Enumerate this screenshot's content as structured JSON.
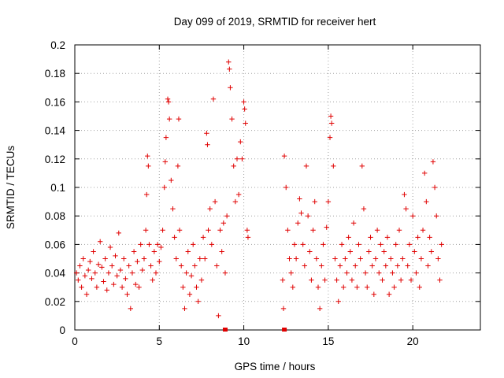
{
  "chart_data": {
    "type": "scatter",
    "title": "Day 099 of 2019, SRMTID for receiver hert",
    "xlabel": "GPS time / hours",
    "ylabel": "SRMTID / TECUs",
    "xlim": [
      0,
      24
    ],
    "ylim": [
      0,
      0.2
    ],
    "x_ticks": [
      0,
      5,
      10,
      15,
      20
    ],
    "x_tick_labels": [
      "0",
      "5",
      "10",
      "15",
      "20"
    ],
    "y_ticks": [
      0,
      0.02,
      0.04,
      0.06,
      0.08,
      0.1,
      0.12,
      0.14,
      0.16,
      0.18,
      0.2
    ],
    "y_tick_labels": [
      "0",
      "0.02",
      "0.04",
      "0.06",
      "0.08",
      "0.1",
      "0.12",
      "0.14",
      "0.16",
      "0.18",
      "0.2"
    ],
    "grid": true,
    "marker": "+",
    "color": "#e00000",
    "series": [
      {
        "points": [
          [
            0.1,
            0.04
          ],
          [
            0.2,
            0.035
          ],
          [
            0.3,
            0.045
          ],
          [
            0.4,
            0.03
          ],
          [
            0.5,
            0.05
          ],
          [
            0.6,
            0.038
          ],
          [
            0.7,
            0.025
          ],
          [
            0.8,
            0.042
          ],
          [
            0.9,
            0.048
          ],
          [
            1.0,
            0.036
          ],
          [
            1.1,
            0.055
          ],
          [
            1.2,
            0.04
          ],
          [
            1.3,
            0.03
          ],
          [
            1.4,
            0.046
          ],
          [
            1.5,
            0.062
          ],
          [
            1.6,
            0.044
          ],
          [
            1.7,
            0.034
          ],
          [
            1.8,
            0.05
          ],
          [
            1.9,
            0.028
          ],
          [
            2.0,
            0.04
          ],
          [
            2.1,
            0.058
          ],
          [
            2.2,
            0.045
          ],
          [
            2.3,
            0.032
          ],
          [
            2.4,
            0.052
          ],
          [
            2.5,
            0.038
          ],
          [
            2.6,
            0.068
          ],
          [
            2.7,
            0.042
          ],
          [
            2.8,
            0.03
          ],
          [
            2.9,
            0.05
          ],
          [
            3.0,
            0.036
          ],
          [
            3.1,
            0.025
          ],
          [
            3.2,
            0.045
          ],
          [
            3.3,
            0.015
          ],
          [
            3.4,
            0.04
          ],
          [
            3.5,
            0.055
          ],
          [
            3.6,
            0.032
          ],
          [
            3.7,
            0.048
          ],
          [
            3.8,
            0.03
          ],
          [
            3.9,
            0.06
          ],
          [
            4.0,
            0.042
          ],
          [
            4.1,
            0.05
          ],
          [
            4.2,
            0.07
          ],
          [
            4.25,
            0.095
          ],
          [
            4.3,
            0.122
          ],
          [
            4.35,
            0.115
          ],
          [
            4.4,
            0.06
          ],
          [
            4.5,
            0.045
          ],
          [
            4.6,
            0.035
          ],
          [
            4.7,
            0.055
          ],
          [
            4.8,
            0.04
          ],
          [
            4.9,
            0.06
          ],
          [
            5.0,
            0.048
          ],
          [
            5.1,
            0.058
          ],
          [
            5.2,
            0.07
          ],
          [
            5.3,
            0.1
          ],
          [
            5.35,
            0.118
          ],
          [
            5.4,
            0.135
          ],
          [
            5.5,
            0.162
          ],
          [
            5.55,
            0.16
          ],
          [
            5.6,
            0.148
          ],
          [
            5.7,
            0.105
          ],
          [
            5.8,
            0.085
          ],
          [
            5.9,
            0.065
          ],
          [
            6.0,
            0.05
          ],
          [
            6.1,
            0.115
          ],
          [
            6.15,
            0.148
          ],
          [
            6.2,
            0.07
          ],
          [
            6.3,
            0.045
          ],
          [
            6.4,
            0.03
          ],
          [
            6.5,
            0.015
          ],
          [
            6.6,
            0.04
          ],
          [
            6.7,
            0.055
          ],
          [
            6.8,
            0.025
          ],
          [
            6.9,
            0.038
          ],
          [
            7.0,
            0.06
          ],
          [
            7.1,
            0.045
          ],
          [
            7.2,
            0.03
          ],
          [
            7.3,
            0.02
          ],
          [
            7.4,
            0.05
          ],
          [
            7.5,
            0.035
          ],
          [
            7.6,
            0.065
          ],
          [
            7.7,
            0.05
          ],
          [
            7.8,
            0.138
          ],
          [
            7.85,
            0.13
          ],
          [
            7.9,
            0.07
          ],
          [
            8.0,
            0.085
          ],
          [
            8.1,
            0.06
          ],
          [
            8.2,
            0.162
          ],
          [
            8.3,
            0.09
          ],
          [
            8.4,
            0.045
          ],
          [
            8.5,
            0.01
          ],
          [
            8.6,
            0.07
          ],
          [
            8.7,
            0.055
          ],
          [
            8.8,
            0.075
          ],
          [
            8.9,
            0.04
          ],
          [
            9.0,
            0.08
          ],
          [
            9.1,
            0.188
          ],
          [
            9.15,
            0.183
          ],
          [
            9.2,
            0.17
          ],
          [
            9.3,
            0.148
          ],
          [
            9.4,
            0.115
          ],
          [
            9.5,
            0.09
          ],
          [
            9.6,
            0.12
          ],
          [
            9.7,
            0.095
          ],
          [
            9.8,
            0.132
          ],
          [
            9.9,
            0.12
          ],
          [
            10.0,
            0.16
          ],
          [
            10.05,
            0.155
          ],
          [
            10.1,
            0.145
          ],
          [
            10.2,
            0.07
          ],
          [
            10.25,
            0.065
          ],
          [
            12.3,
            0.035
          ],
          [
            12.35,
            0.015
          ],
          [
            12.4,
            0.122
          ],
          [
            12.5,
            0.1
          ],
          [
            12.6,
            0.07
          ],
          [
            12.7,
            0.05
          ],
          [
            12.8,
            0.04
          ],
          [
            12.9,
            0.03
          ],
          [
            13.0,
            0.06
          ],
          [
            13.1,
            0.05
          ],
          [
            13.2,
            0.075
          ],
          [
            13.3,
            0.092
          ],
          [
            13.4,
            0.082
          ],
          [
            13.5,
            0.06
          ],
          [
            13.6,
            0.045
          ],
          [
            13.7,
            0.115
          ],
          [
            13.8,
            0.08
          ],
          [
            13.9,
            0.055
          ],
          [
            14.0,
            0.035
          ],
          [
            14.1,
            0.07
          ],
          [
            14.2,
            0.09
          ],
          [
            14.3,
            0.05
          ],
          [
            14.4,
            0.03
          ],
          [
            14.5,
            0.015
          ],
          [
            14.6,
            0.045
          ],
          [
            14.7,
            0.06
          ],
          [
            14.8,
            0.035
          ],
          [
            14.9,
            0.072
          ],
          [
            15.0,
            0.09
          ],
          [
            15.1,
            0.135
          ],
          [
            15.15,
            0.15
          ],
          [
            15.2,
            0.145
          ],
          [
            15.3,
            0.115
          ],
          [
            15.4,
            0.05
          ],
          [
            15.5,
            0.035
          ],
          [
            15.6,
            0.02
          ],
          [
            15.7,
            0.045
          ],
          [
            15.8,
            0.06
          ],
          [
            15.9,
            0.03
          ],
          [
            16.0,
            0.05
          ],
          [
            16.1,
            0.04
          ],
          [
            16.2,
            0.065
          ],
          [
            16.3,
            0.055
          ],
          [
            16.4,
            0.035
          ],
          [
            16.5,
            0.075
          ],
          [
            16.6,
            0.045
          ],
          [
            16.7,
            0.03
          ],
          [
            16.8,
            0.06
          ],
          [
            16.9,
            0.05
          ],
          [
            17.0,
            0.115
          ],
          [
            17.1,
            0.085
          ],
          [
            17.2,
            0.04
          ],
          [
            17.3,
            0.03
          ],
          [
            17.4,
            0.055
          ],
          [
            17.5,
            0.065
          ],
          [
            17.6,
            0.045
          ],
          [
            17.7,
            0.025
          ],
          [
            17.8,
            0.05
          ],
          [
            17.9,
            0.07
          ],
          [
            18.0,
            0.04
          ],
          [
            18.1,
            0.06
          ],
          [
            18.2,
            0.035
          ],
          [
            18.3,
            0.055
          ],
          [
            18.4,
            0.045
          ],
          [
            18.5,
            0.065
          ],
          [
            18.6,
            0.025
          ],
          [
            18.7,
            0.05
          ],
          [
            18.8,
            0.04
          ],
          [
            18.9,
            0.03
          ],
          [
            19.0,
            0.06
          ],
          [
            19.1,
            0.045
          ],
          [
            19.2,
            0.07
          ],
          [
            19.3,
            0.035
          ],
          [
            19.4,
            0.05
          ],
          [
            19.5,
            0.095
          ],
          [
            19.6,
            0.085
          ],
          [
            19.7,
            0.045
          ],
          [
            19.8,
            0.06
          ],
          [
            19.9,
            0.035
          ],
          [
            20.0,
            0.08
          ],
          [
            20.1,
            0.055
          ],
          [
            20.2,
            0.04
          ],
          [
            20.3,
            0.065
          ],
          [
            20.4,
            0.03
          ],
          [
            20.5,
            0.05
          ],
          [
            20.6,
            0.07
          ],
          [
            20.7,
            0.11
          ],
          [
            20.8,
            0.09
          ],
          [
            20.9,
            0.045
          ],
          [
            21.0,
            0.065
          ],
          [
            21.1,
            0.055
          ],
          [
            21.2,
            0.118
          ],
          [
            21.3,
            0.1
          ],
          [
            21.4,
            0.08
          ],
          [
            21.5,
            0.05
          ],
          [
            21.6,
            0.035
          ],
          [
            21.7,
            0.06
          ]
        ]
      }
    ],
    "gap_markers_x": [
      8.9,
      12.4
    ]
  }
}
